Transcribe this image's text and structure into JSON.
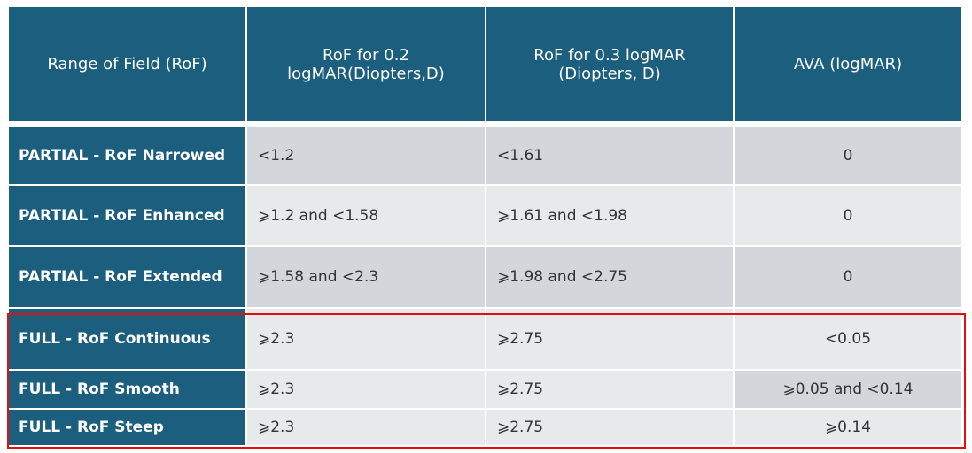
{
  "header": [
    [
      "Range of Field (RoF)"
    ],
    [
      "RoF for 0.2",
      "logMAR(Diopters,D)"
    ],
    [
      "RoF for 0.3 logMAR",
      "(Diopters, D)"
    ],
    [
      "AVA (logMAR)"
    ]
  ],
  "rows": [
    [
      "PARTIAL - RoF Narrowed",
      "<1.2",
      "<1.61",
      "0"
    ],
    [
      "PARTIAL - RoF Enhanced",
      "⩾1.2 and <1.58",
      "⩾1.61 and <1.98",
      "0"
    ],
    [
      "PARTIAL - RoF Extended",
      "⩾1.58 and <2.3",
      "⩾1.98 and <2.75",
      "0"
    ],
    [
      "FULL - RoF Continuous",
      "⩾2.3",
      "⩾2.75",
      "<0.05"
    ],
    [
      "FULL - RoF Smooth",
      "⩾2.3",
      "⩾2.75",
      "⩾0.05 and <0.14"
    ],
    [
      "FULL - RoF Steep",
      "⩾2.3",
      "⩾2.75",
      "⩾0.14"
    ]
  ]
}
